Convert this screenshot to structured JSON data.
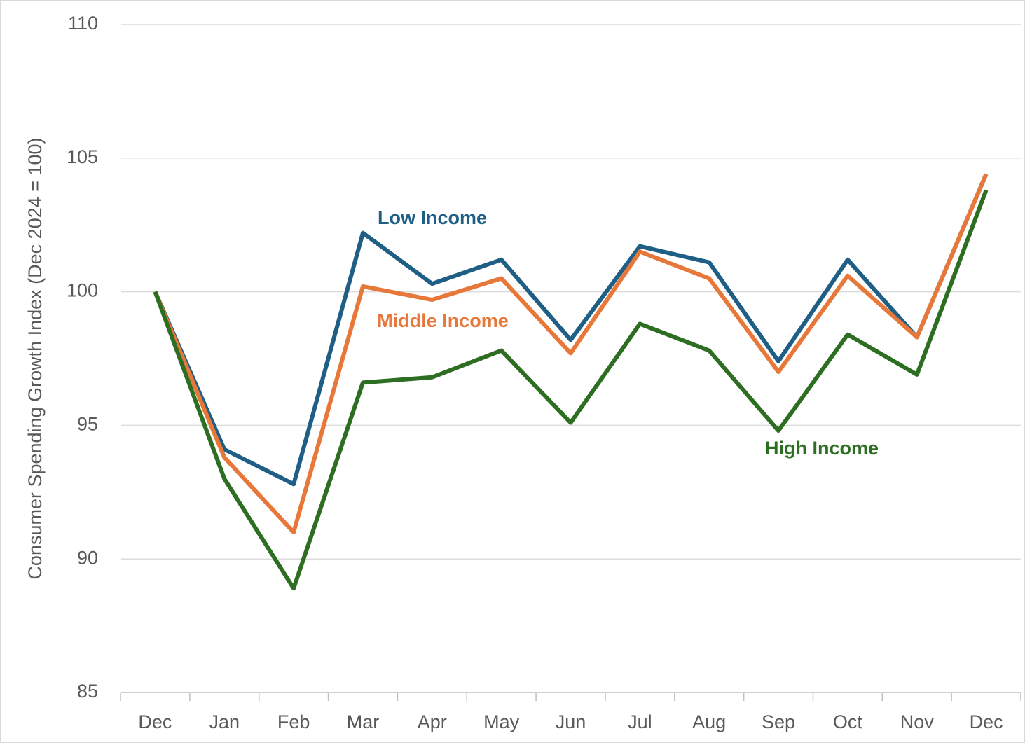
{
  "chart_data": {
    "type": "line",
    "y_label": "Consumer Spending Growth Index (Dec 2024 = 100)",
    "categories": [
      "Dec",
      "Jan",
      "Feb",
      "Mar",
      "Apr",
      "May",
      "Jun",
      "Jul",
      "Aug",
      "Sep",
      "Oct",
      "Nov",
      "Dec"
    ],
    "series": [
      {
        "name": "Low Income",
        "color": "#1f5f86",
        "values": [
          100,
          94.1,
          92.8,
          102.2,
          100.3,
          101.2,
          98.2,
          101.7,
          101.1,
          97.4,
          101.2,
          98.3,
          104.4
        ]
      },
      {
        "name": "Middle Income",
        "color": "#e8773a",
        "values": [
          100,
          93.8,
          91.0,
          100.2,
          99.7,
          100.5,
          97.7,
          101.5,
          100.5,
          97.0,
          100.6,
          98.3,
          104.4
        ]
      },
      {
        "name": "High Income",
        "color": "#2e6e22",
        "values": [
          100,
          93.0,
          88.9,
          96.6,
          96.8,
          97.8,
          95.1,
          98.8,
          97.8,
          94.8,
          98.4,
          96.9,
          103.8
        ]
      }
    ],
    "ylim": [
      85,
      110
    ],
    "yticks": [
      85,
      90,
      95,
      100,
      105,
      110
    ],
    "grid": true
  }
}
